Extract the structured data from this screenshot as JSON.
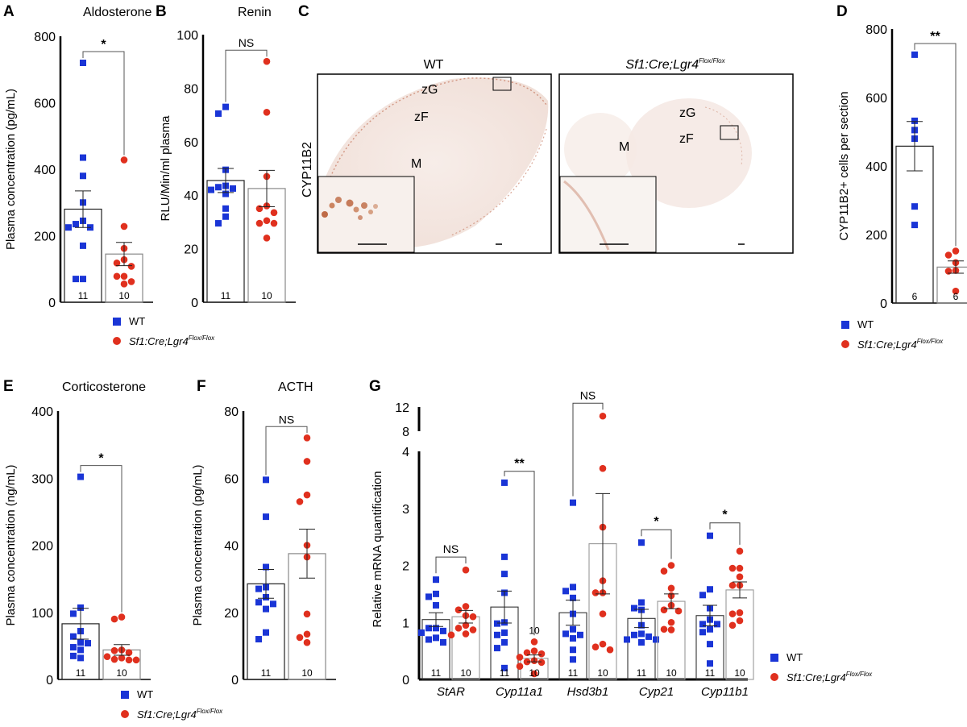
{
  "colors": {
    "wt": "#1a35d6",
    "ko": "#e0301e",
    "axis": "#000000",
    "bar_edge": "#333333",
    "tissue": "#f3e6e0",
    "stain": "#b5542a"
  },
  "legend": {
    "wt_label": "WT",
    "ko_label_main": "Sf1:Cre;Lgr4",
    "ko_label_sup": "Flox/Flox"
  },
  "chart_data": [
    {
      "id": "A",
      "type": "bar",
      "letter": "A",
      "title": "Aldosterone",
      "ylabel": "Plasma concentration (pg/mL)",
      "ylim": [
        0,
        800
      ],
      "yticks": [
        0,
        200,
        400,
        600,
        800
      ],
      "categories": [
        "WT",
        "Sf1:Cre;Lgr4 Flox/Flox"
      ],
      "series": [
        {
          "name": "WT",
          "mean": 280,
          "sem": 55,
          "n": 11,
          "points": [
            720,
            435,
            380,
            300,
            245,
            235,
            225,
            225,
            170,
            70,
            70
          ]
        },
        {
          "name": "Sf1:Cre;Lgr4 Flox/Flox",
          "mean": 145,
          "sem": 35,
          "n": 10,
          "points": [
            428,
            228,
            162,
            128,
            118,
            108,
            78,
            78,
            62,
            55
          ]
        }
      ],
      "significance": "*"
    },
    {
      "id": "B",
      "type": "bar",
      "letter": "B",
      "title": "Renin",
      "ylabel": "RLU/Min/ml plasma",
      "ylim": [
        0,
        100
      ],
      "yticks": [
        0,
        20,
        40,
        60,
        80,
        100
      ],
      "categories": [
        "WT",
        "Sf1:Cre;Lgr4 Flox/Flox"
      ],
      "series": [
        {
          "name": "WT",
          "mean": 45.5,
          "sem": 4.5,
          "n": 11,
          "points": [
            73,
            70.5,
            49.5,
            43.5,
            43,
            42.5,
            42,
            40.5,
            35,
            32,
            29.5
          ]
        },
        {
          "name": "Sf1:Cre;Lgr4 Flox/Flox",
          "mean": 42.5,
          "sem": 6.8,
          "n": 10,
          "points": [
            90,
            71,
            47,
            36,
            35,
            33.5,
            30.5,
            29.5,
            29.5,
            24
          ]
        }
      ],
      "significance": "NS"
    },
    {
      "id": "D",
      "type": "bar",
      "letter": "D",
      "title": "",
      "ylabel": "CYP11B2+ cells per section",
      "ylim": [
        0,
        800
      ],
      "yticks": [
        0,
        200,
        400,
        600,
        800
      ],
      "categories": [
        "WT",
        "Sf1:Cre;Lgr4 Flox/Flox"
      ],
      "series": [
        {
          "name": "WT",
          "mean": 458,
          "sem": 72,
          "n": 6,
          "points": [
            725,
            532,
            505,
            480,
            282,
            228
          ]
        },
        {
          "name": "Sf1:Cre;Lgr4 Flox/Flox",
          "mean": 105,
          "sem": 18,
          "n": 6,
          "points": [
            152,
            140,
            118,
            95,
            93,
            35
          ]
        }
      ],
      "significance": "**"
    },
    {
      "id": "E",
      "type": "bar",
      "letter": "E",
      "title": "Corticosterone",
      "ylabel": "Plasma concentration (ng/mL)",
      "ylim": [
        0,
        400
      ],
      "yticks": [
        0,
        100,
        200,
        300,
        400
      ],
      "categories": [
        "WT",
        "Sf1:Cre;Lgr4 Flox/Flox"
      ],
      "series": [
        {
          "name": "WT",
          "mean": 83,
          "sem": 23,
          "n": 11,
          "points": [
            302,
            107,
            98,
            72,
            64,
            55,
            54,
            48,
            44,
            35,
            32
          ]
        },
        {
          "name": "Sf1:Cre;Lgr4 Flox/Flox",
          "mean": 44,
          "sem": 8,
          "n": 10,
          "points": [
            93,
            90,
            44,
            43,
            40,
            34,
            32,
            30,
            29,
            29
          ]
        }
      ],
      "significance": "*"
    },
    {
      "id": "F",
      "type": "bar",
      "letter": "F",
      "title": "ACTH",
      "ylabel": "Plasma concentration (pg/mL)",
      "ylim": [
        0,
        80
      ],
      "yticks": [
        0,
        20,
        40,
        60,
        80
      ],
      "categories": [
        "WT",
        "Sf1:Cre;Lgr4 Flox/Flox"
      ],
      "series": [
        {
          "name": "WT",
          "mean": 28.5,
          "sem": 4.3,
          "n": 11,
          "points": [
            59.5,
            48.5,
            33.5,
            27.5,
            27,
            24.5,
            23,
            22.5,
            21,
            14,
            12
          ]
        },
        {
          "name": "Sf1:Cre;Lgr4 Flox/Flox",
          "mean": 37.5,
          "sem": 7.3,
          "n": 10,
          "points": [
            72,
            65,
            55,
            53,
            40,
            36.5,
            19.5,
            13.5,
            12.5,
            11
          ]
        }
      ],
      "significance": "NS"
    },
    {
      "id": "G",
      "type": "bar",
      "letter": "G",
      "title": "",
      "ylabel": "Relative mRNA quantification",
      "ylim": [
        0,
        4
      ],
      "ylim_upper": [
        8,
        12
      ],
      "yticks": [
        0,
        1,
        2,
        3,
        4
      ],
      "yticks_upper": [
        8,
        12
      ],
      "axis_break": true,
      "categories": [
        "StAR",
        "Cyp11a1",
        "Hsd3b1",
        "Cyp21",
        "Cyp11b1"
      ],
      "groups": [
        {
          "gene": "StAR",
          "significance": "NS",
          "wt": {
            "mean": 1.05,
            "sem": 0.12,
            "n": 11,
            "points": [
              1.75,
              1.5,
              1.45,
              1.3,
              0.9,
              0.9,
              0.85,
              0.82,
              0.73,
              0.7,
              0.65
            ]
          },
          "ko": {
            "mean": 1.1,
            "sem": 0.11,
            "n": 10,
            "points": [
              1.92,
              1.28,
              1.22,
              1.12,
              1.1,
              0.95,
              0.9,
              0.87,
              0.8,
              0.78
            ]
          }
        },
        {
          "gene": "Cyp11a1",
          "significance": "**",
          "extra_n_label": "10",
          "wt": {
            "mean": 1.27,
            "sem": 0.28,
            "n": 11,
            "points": [
              3.45,
              2.15,
              1.85,
              1.52,
              1.0,
              0.98,
              0.82,
              0.78,
              0.65,
              0.55,
              0.2
            ]
          },
          "ko": {
            "mean": 0.37,
            "sem": 0.06,
            "n": 10,
            "points": [
              0.66,
              0.5,
              0.47,
              0.45,
              0.39,
              0.33,
              0.31,
              0.3,
              0.23,
              0.1
            ]
          }
        },
        {
          "gene": "Hsd3b1",
          "significance": "NS",
          "wt": {
            "mean": 1.17,
            "sem": 0.22,
            "n": 11,
            "points": [
              3.1,
              1.62,
              1.55,
              1.43,
              1.15,
              0.88,
              0.8,
              0.78,
              0.72,
              0.52,
              0.35
            ]
          },
          "ko": {
            "mean": 2.38,
            "sem": 0.88,
            "n": 10,
            "points": [
              10.5,
              3.7,
              2.67,
              1.73,
              1.52,
              1.52,
              1.15,
              0.62,
              0.57,
              0.52
            ]
          }
        },
        {
          "gene": "Cyp21",
          "significance": "*",
          "wt": {
            "mean": 1.07,
            "sem": 0.16,
            "n": 11,
            "points": [
              2.4,
              1.35,
              1.25,
              1.22,
              0.95,
              0.8,
              0.78,
              0.75,
              0.7,
              0.7,
              0.65
            ]
          },
          "ko": {
            "mean": 1.37,
            "sem": 0.13,
            "n": 10,
            "points": [
              2.0,
              1.9,
              1.6,
              1.47,
              1.3,
              1.22,
              1.2,
              1.0,
              0.88,
              0.87
            ]
          }
        },
        {
          "gene": "Cyp11b1",
          "significance": "*",
          "wt": {
            "mean": 1.12,
            "sem": 0.18,
            "n": 11,
            "points": [
              2.52,
              1.58,
              1.48,
              1.25,
              1.05,
              0.97,
              0.97,
              0.88,
              0.83,
              0.62,
              0.28
            ]
          },
          "ko": {
            "mean": 1.57,
            "sem": 0.14,
            "n": 10,
            "points": [
              2.25,
              1.95,
              1.95,
              1.8,
              1.65,
              1.65,
              1.17,
              1.15,
              1.03,
              0.95
            ]
          }
        }
      ]
    }
  ],
  "histology": {
    "letter": "C",
    "row_label": "CYP11B2",
    "panels": [
      {
        "title": "WT",
        "zones": [
          "zG",
          "zF",
          "M"
        ]
      },
      {
        "title_main": "Sf1:Cre;Lgr4",
        "title_sup": "Flox/Flox",
        "zones": [
          "zG",
          "zF",
          "M"
        ]
      }
    ]
  }
}
